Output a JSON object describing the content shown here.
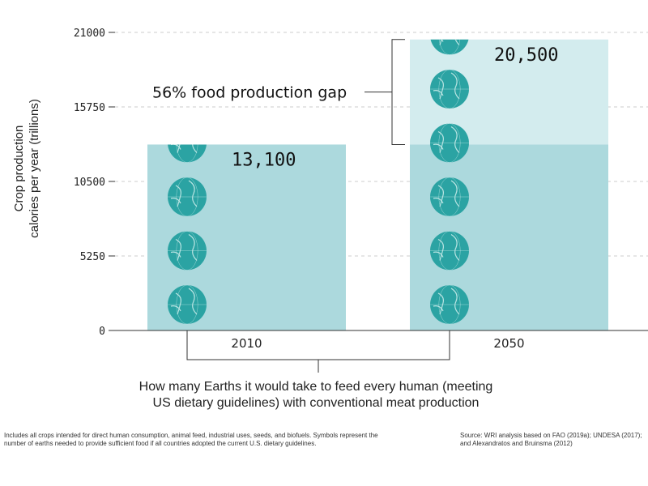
{
  "chart_data": {
    "type": "bar",
    "categories": [
      "2010",
      "2050"
    ],
    "values": [
      13100,
      20500
    ],
    "value_labels": [
      "13,100",
      "20,500"
    ],
    "earths_per_bar": [
      4,
      6
    ],
    "gap": {
      "from": 13100,
      "to": 20500,
      "label": "56% food production gap"
    },
    "ylabel_lines": [
      "Crop production",
      "calories  per year (trillions)"
    ],
    "yticks": [
      0,
      5250,
      10500,
      15750,
      21000
    ],
    "ylim": [
      0,
      21000
    ],
    "grid": true,
    "caption_lines": [
      "How many Earths it would take to feed every human (meeting",
      "US dietary guidelines) with conventional meat production"
    ],
    "colors": {
      "bar": "#acd9dd",
      "gap_fill": "#d3ecee",
      "earth": "#2ba3a3",
      "earth_lines": "#b9e4e2",
      "axis": "#333333",
      "grid": "#cccccc"
    }
  },
  "footnotes": {
    "left": "Includes all crops intended for direct human consumption, animal feed, industrial uses, seeds, and biofuels. Symbols represent the number of earths needed to provide sufficient food if all countries adopted the current U.S. dietary guidelines.",
    "right": "Source: WRI analysis based on FAO (2019a); UNDESA (2017); and Alexandratos and Bruinsma (2012)"
  }
}
